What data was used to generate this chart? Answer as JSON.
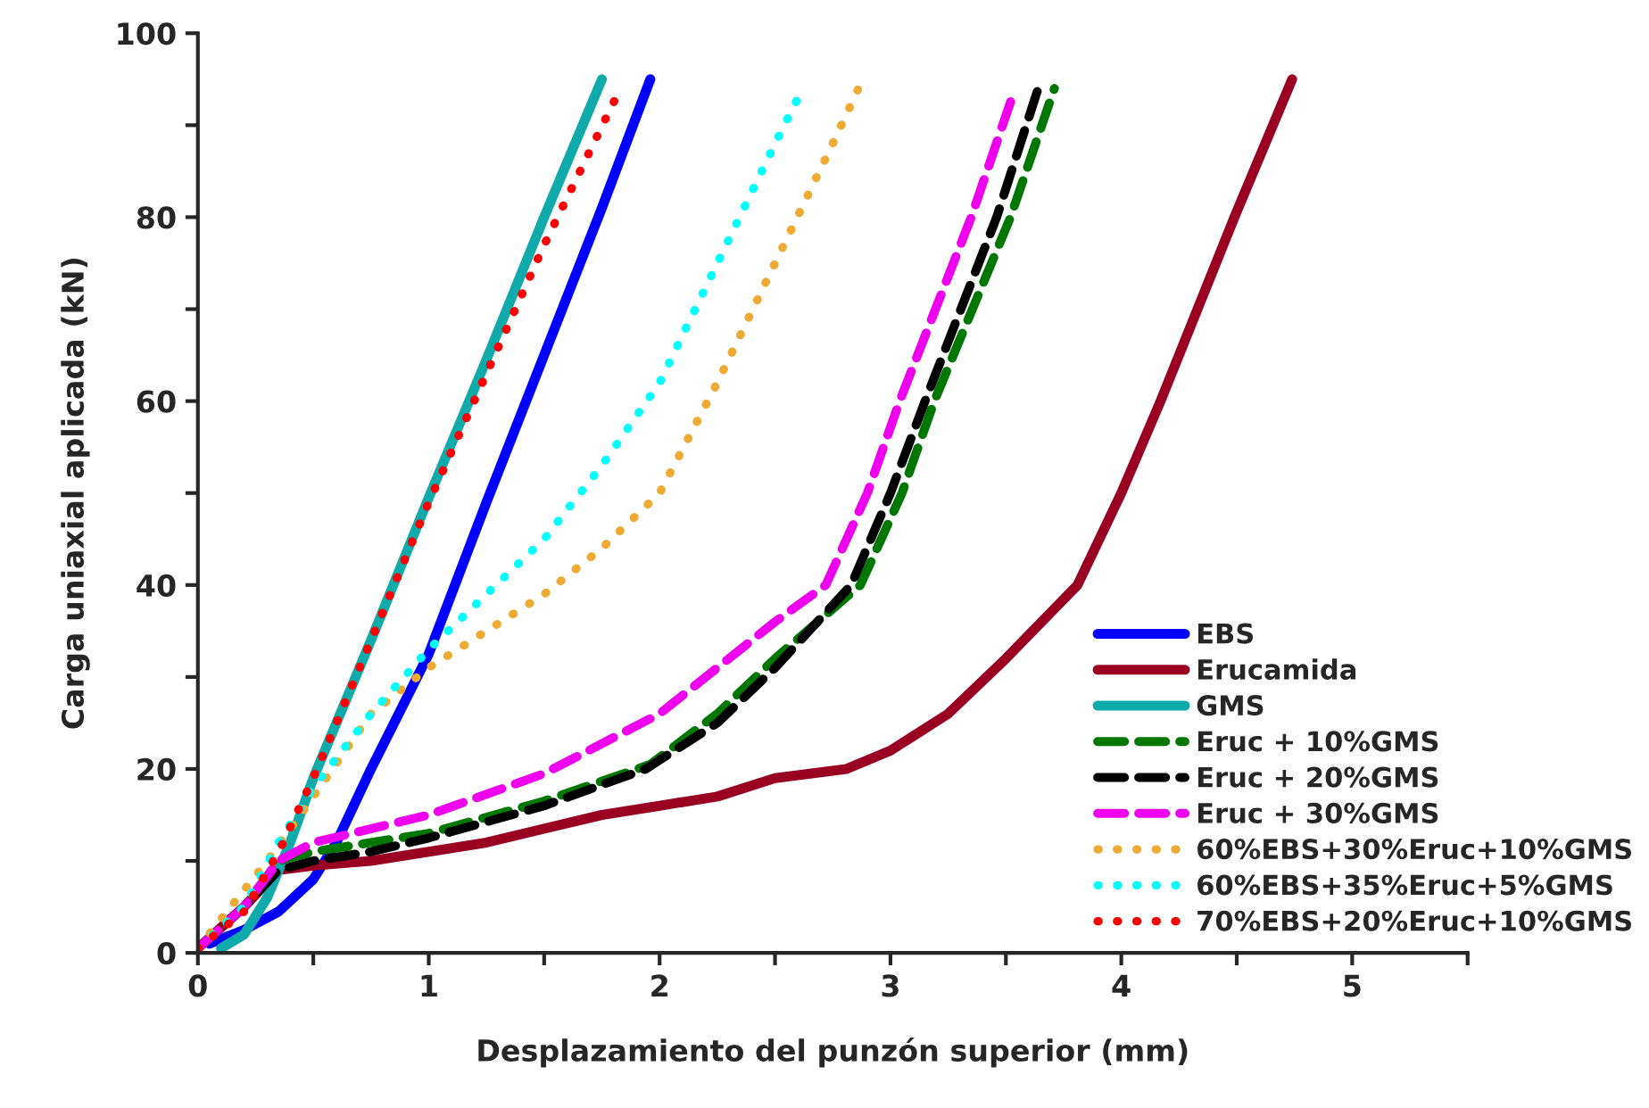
{
  "chart_data": {
    "type": "line",
    "xlabel": "Desplazamiento del punzón superior (mm)",
    "ylabel": "Carga uniaxial aplicada (kN)",
    "xlim": [
      0,
      5.5
    ],
    "ylim": [
      0,
      100
    ],
    "xticks": [
      0,
      {
        "value": 0.5,
        "label": null
      },
      1,
      {
        "value": 1.5,
        "label": null
      },
      2,
      {
        "value": 2.5,
        "label": null
      },
      3,
      {
        "value": 3.5,
        "label": null
      },
      4,
      {
        "value": 4.5,
        "label": null
      },
      5,
      {
        "value": 5.5,
        "label": null
      }
    ],
    "yticks": [
      0,
      {
        "value": 10,
        "label": null
      },
      20,
      {
        "value": 30,
        "label": null
      },
      40,
      {
        "value": 50,
        "label": null
      },
      60,
      {
        "value": 70,
        "label": null
      },
      80,
      {
        "value": 90,
        "label": null
      },
      100
    ],
    "grid": false,
    "legend": "bottom right",
    "series": [
      {
        "name": "EBS",
        "color": "#0000ff",
        "line_style": "solid",
        "x": [
          0.05,
          0.2,
          0.35,
          0.5,
          0.6,
          0.75,
          1.0,
          1.25,
          1.5,
          1.75,
          1.96
        ],
        "values": [
          1,
          2.5,
          4.5,
          8,
          12,
          20,
          32.5,
          49,
          65,
          81,
          95
        ]
      },
      {
        "name": "Erucamida",
        "color": "#990022",
        "line_style": "solid",
        "x": [
          0,
          0.2,
          0.35,
          0.5,
          0.75,
          1.0,
          1.25,
          1.5,
          1.75,
          2.0,
          2.25,
          2.5,
          2.81,
          3.0,
          3.25,
          3.5,
          3.81,
          4.0,
          4.17,
          4.49,
          4.74
        ],
        "values": [
          0.5,
          5,
          9,
          9.5,
          10,
          11,
          12,
          13.5,
          15,
          16,
          17,
          19,
          20,
          22,
          26,
          32,
          40,
          50,
          60,
          80,
          95
        ]
      },
      {
        "name": "GMS",
        "color": "#10aaaa",
        "line_style": "solid",
        "x": [
          0.1,
          0.2,
          0.3,
          0.4,
          0.5,
          0.75,
          1.0,
          1.25,
          1.5,
          1.75
        ],
        "values": [
          0.5,
          2,
          6,
          12,
          19,
          34,
          49.5,
          64.5,
          80,
          95
        ]
      },
      {
        "name": "Eruc + 10%GMS",
        "color": "#007700",
        "line_style": "dashed",
        "x": [
          0,
          0.2,
          0.35,
          0.5,
          0.75,
          1.0,
          1.5,
          1.96,
          2.25,
          2.5,
          2.87,
          3.05,
          3.19,
          3.52,
          3.71
        ],
        "values": [
          0.5,
          5,
          10,
          11,
          12,
          13,
          16.5,
          20.5,
          26,
          32,
          40,
          50,
          60,
          80,
          94
        ]
      },
      {
        "name": "Eruc + 20%GMS",
        "color": "#000000",
        "line_style": "dashed",
        "x": [
          0,
          0.2,
          0.35,
          0.5,
          0.75,
          1.0,
          1.5,
          1.94,
          2.25,
          2.5,
          2.83,
          3.0,
          3.15,
          3.46,
          3.64
        ],
        "values": [
          0.5,
          5,
          9,
          10,
          11,
          12.5,
          16,
          20,
          25,
          31,
          40,
          50,
          60,
          80,
          94
        ]
      },
      {
        "name": "Eruc + 30%GMS",
        "color": "#ee00ee",
        "line_style": "dashed",
        "x": [
          0,
          0.2,
          0.35,
          0.5,
          1.0,
          1.5,
          2.0,
          2.25,
          2.5,
          2.72,
          2.9,
          3.04,
          3.35,
          3.54
        ],
        "values": [
          0.5,
          5,
          10,
          12,
          15,
          19.5,
          26,
          31,
          36,
          40,
          50,
          60,
          80,
          94
        ]
      },
      {
        "name": "60%EBS+30%Eruc+10%GMS",
        "color": "#eeaa33",
        "line_style": "dotted",
        "x": [
          0,
          0.3,
          0.5,
          0.75,
          1.0,
          1.25,
          1.5,
          1.75,
          2.0,
          2.25,
          2.5,
          2.75,
          2.88
        ],
        "values": [
          0.5,
          10,
          17,
          26,
          31,
          35,
          39,
          44,
          50,
          62,
          75,
          88,
          95
        ]
      },
      {
        "name": "60%EBS+35%Eruc+5%GMS",
        "color": "#00ffff",
        "line_style": "dotted",
        "x": [
          0,
          0.2,
          0.35,
          0.5,
          0.75,
          1.0,
          1.25,
          1.5,
          1.75,
          2.0,
          2.25,
          2.5,
          2.62
        ],
        "values": [
          0.5,
          5,
          12,
          18,
          26,
          33,
          39,
          45,
          53,
          62,
          75,
          88,
          94
        ]
      },
      {
        "name": "70%EBS+20%Eruc+10%GMS",
        "color": "#ff0000",
        "line_style": "dotted",
        "x": [
          0,
          0.2,
          0.35,
          0.5,
          0.75,
          1.0,
          1.25,
          1.5,
          1.83
        ],
        "values": [
          0.5,
          4.5,
          11,
          19,
          34,
          49,
          63,
          77,
          94
        ]
      }
    ]
  }
}
